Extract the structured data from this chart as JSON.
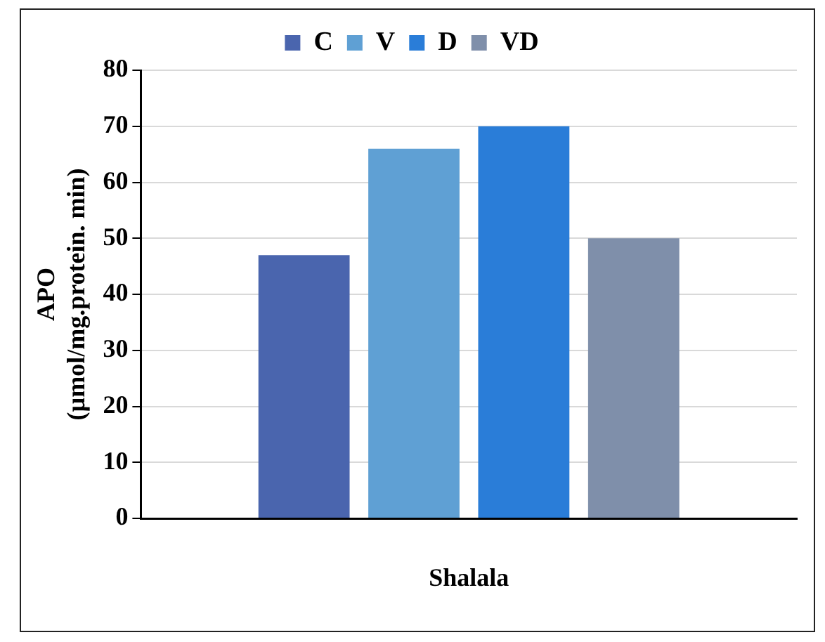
{
  "chart_data": {
    "type": "bar",
    "xlabel": "Shalala",
    "ylabel": "APO\n(µmol/mg.protein. min)",
    "categories": [
      null
    ],
    "series": [
      {
        "name": "C",
        "color": "#4a65ae",
        "values": [
          47
        ]
      },
      {
        "name": "V",
        "color": "#5fa0d4",
        "values": [
          66
        ]
      },
      {
        "name": "D",
        "color": "#2a7dd8",
        "values": [
          70
        ]
      },
      {
        "name": "VD",
        "color": "#7f8faa",
        "values": [
          50
        ]
      }
    ],
    "ylim": [
      0,
      80
    ],
    "yticks": [
      0,
      10,
      20,
      30,
      40,
      50,
      60,
      70,
      80
    ],
    "grid": "y",
    "legend": "top"
  }
}
